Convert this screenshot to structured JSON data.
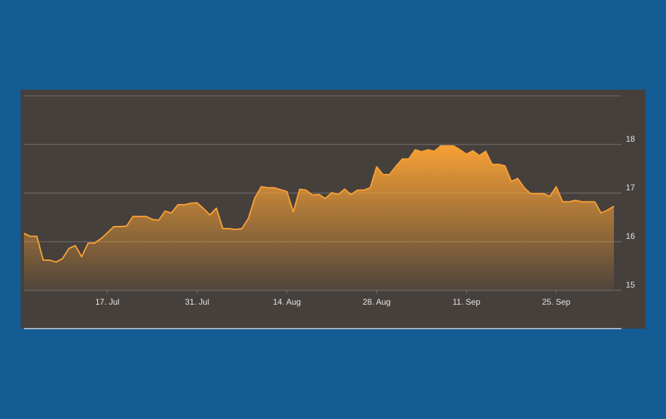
{
  "chart_data": {
    "type": "area",
    "x": [
      "4. Jul",
      "5. Jul",
      "6. Jul",
      "7. Jul",
      "8. Jul",
      "9. Jul",
      "10. Jul",
      "11. Jul",
      "12. Jul",
      "13. Jul",
      "14. Jul",
      "15. Jul",
      "16. Jul",
      "17. Jul",
      "18. Jul",
      "19. Jul",
      "20. Jul",
      "21. Jul",
      "22. Jul",
      "23. Jul",
      "24. Jul",
      "25. Jul",
      "26. Jul",
      "27. Jul",
      "28. Jul",
      "29. Jul",
      "30. Jul",
      "31. Jul",
      "1. Aug",
      "2. Aug",
      "3. Aug",
      "4. Aug",
      "5. Aug",
      "6. Aug",
      "7. Aug",
      "8. Aug",
      "9. Aug",
      "10. Aug",
      "11. Aug",
      "12. Aug",
      "13. Aug",
      "14. Aug",
      "15. Aug",
      "16. Aug",
      "17. Aug",
      "18. Aug",
      "19. Aug",
      "20. Aug",
      "21. Aug",
      "22. Aug",
      "23. Aug",
      "24. Aug",
      "25. Aug",
      "26. Aug",
      "27. Aug",
      "28. Aug",
      "29. Aug",
      "30. Aug",
      "31. Aug",
      "1. Sep",
      "2. Sep",
      "3. Sep",
      "4. Sep",
      "5. Sep",
      "6. Sep",
      "7. Sep",
      "8. Sep",
      "9. Sep",
      "10. Sep",
      "11. Sep",
      "12. Sep",
      "13. Sep",
      "14. Sep",
      "15. Sep",
      "16. Sep",
      "17. Sep",
      "18. Sep",
      "19. Sep",
      "20. Sep",
      "21. Sep",
      "22. Sep",
      "23. Sep",
      "24. Sep",
      "25. Sep",
      "26. Sep",
      "27. Sep",
      "28. Sep",
      "29. Sep",
      "30. Sep",
      "1. Oct",
      "2. Oct",
      "3. Oct",
      "4. Oct"
    ],
    "values": [
      16.17,
      16.11,
      16.11,
      15.62,
      15.62,
      15.58,
      15.65,
      15.86,
      15.92,
      15.69,
      15.97,
      15.97,
      16.06,
      16.18,
      16.31,
      16.31,
      16.32,
      16.52,
      16.52,
      16.52,
      16.46,
      16.44,
      16.63,
      16.59,
      16.76,
      16.76,
      16.79,
      16.8,
      16.68,
      16.55,
      16.69,
      16.27,
      16.27,
      16.25,
      16.27,
      16.48,
      16.9,
      17.13,
      17.11,
      17.11,
      17.07,
      17.03,
      16.61,
      17.08,
      17.06,
      16.96,
      16.97,
      16.89,
      17.01,
      16.97,
      17.08,
      16.97,
      17.06,
      17.06,
      17.11,
      17.54,
      17.38,
      17.38,
      17.55,
      17.7,
      17.7,
      17.89,
      17.85,
      17.89,
      17.86,
      17.97,
      17.97,
      17.97,
      17.89,
      17.8,
      17.87,
      17.77,
      17.86,
      17.59,
      17.59,
      17.56,
      17.24,
      17.3,
      17.11,
      16.99,
      16.99,
      16.99,
      16.93,
      17.13,
      16.82,
      16.82,
      16.85,
      16.82,
      16.82,
      16.82,
      16.59,
      16.65,
      16.73
    ],
    "color": "#f7a035",
    "ylim": [
      15,
      19
    ],
    "yticks": [
      15,
      16,
      17,
      18
    ],
    "xticks": [
      "17. Jul",
      "31. Jul",
      "14. Aug",
      "28. Aug",
      "11. Sep",
      "25. Sep"
    ],
    "grid": true
  }
}
